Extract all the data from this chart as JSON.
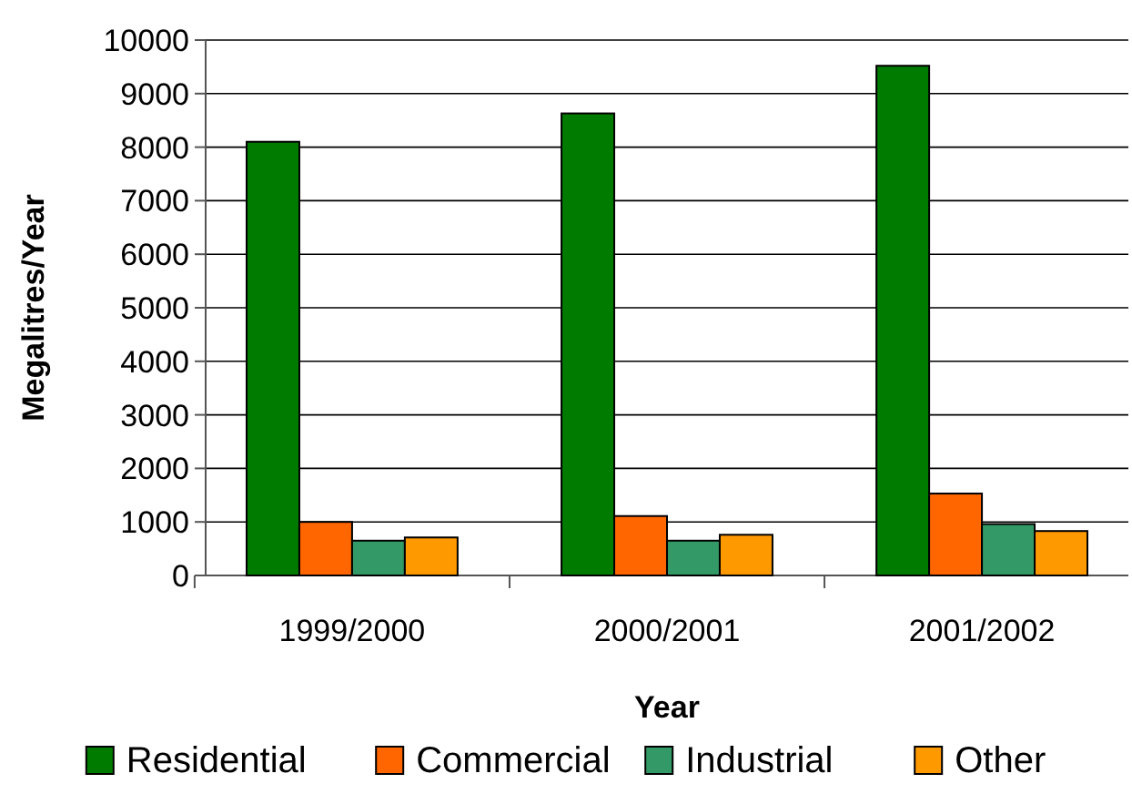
{
  "chart_data": {
    "type": "bar",
    "xlabel": "Year",
    "ylabel": "Megalitres/Year",
    "categories": [
      "1999/2000",
      "2000/2001",
      "2001/2002"
    ],
    "series": [
      {
        "name": "Residential",
        "color": "#007b00",
        "values": [
          8100,
          8630,
          9520
        ]
      },
      {
        "name": "Commercial",
        "color": "#ff6600",
        "values": [
          1000,
          1110,
          1530
        ]
      },
      {
        "name": "Industrial",
        "color": "#339966",
        "values": [
          650,
          650,
          960
        ]
      },
      {
        "name": "Other",
        "color": "#ff9900",
        "values": [
          710,
          760,
          830
        ]
      }
    ],
    "ylim": [
      0,
      10000
    ],
    "yticks": [
      0,
      1000,
      2000,
      3000,
      4000,
      5000,
      6000,
      7000,
      8000,
      9000,
      10000
    ],
    "grid": "y",
    "legend": "bottom"
  }
}
